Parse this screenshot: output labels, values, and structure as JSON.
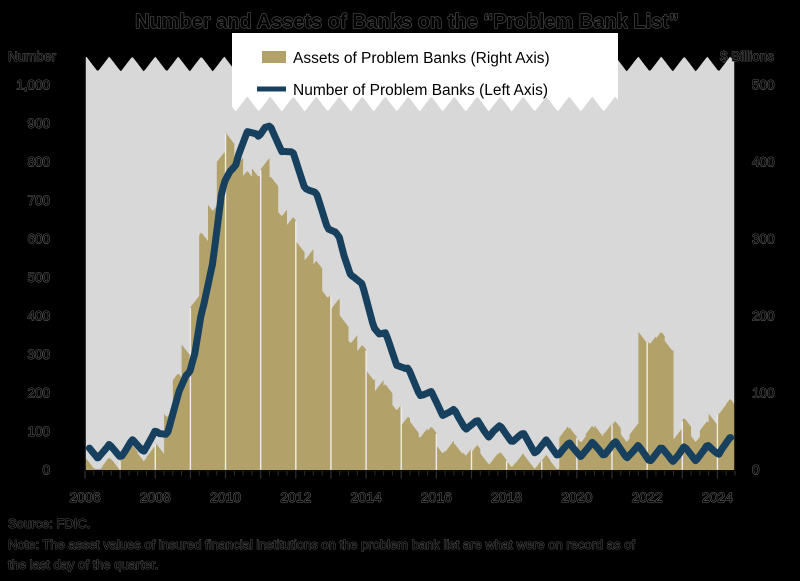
{
  "title": "Number and Assets of Banks on the “Problem Bank List”",
  "left_axis": {
    "label": "Number",
    "ticks": [
      "1,000",
      "900",
      "800",
      "700",
      "600",
      "500",
      "400",
      "300",
      "200",
      "100",
      "0"
    ],
    "min": 0,
    "max": 1000,
    "step": 100
  },
  "right_axis": {
    "label": "$ Billions",
    "ticks": [
      "500",
      "400",
      "300",
      "200",
      "100",
      "0"
    ],
    "min": 0,
    "max": 500,
    "step": 100
  },
  "x_axis": {
    "year_labels": [
      "2006",
      "2008",
      "2010",
      "2012",
      "2014",
      "2016",
      "2018",
      "2020",
      "2022",
      "2024"
    ],
    "start_year": 2006,
    "quarters": 74
  },
  "legend": [
    {
      "label": "Assets of Problem Banks (Right Axis)",
      "swatch": "bar-swatch",
      "color": "#b2a169"
    },
    {
      "label": "Number of Problem Banks (Left Axis)",
      "swatch": "line-swatch",
      "color": "#16405e"
    }
  ],
  "source": "Source: FDIC.",
  "note": {
    "line1": "Note: The asset values of insured financial institutions on the problem bank list are what were on record as of",
    "line2": "the last day of the quarter."
  },
  "colors": {
    "background": "#000000",
    "plot_background": "#d8d8d8",
    "bar": "#b2a169",
    "line": "#16405e",
    "legend_box": "#ffffff",
    "year_separator": "#ececec",
    "axis": "#0a0a0a",
    "tick_mark": "#2d2d2d"
  },
  "chart_data": {
    "type": "bar+line",
    "x_start": "2006 Q1",
    "x_end": "2024 Q2",
    "x_frequency": "quarterly",
    "title": "Number and Assets of Banks on the “Problem Bank List”",
    "left_ylim": [
      0,
      1000
    ],
    "right_ylim": [
      0,
      500
    ],
    "legend_position": "top-center",
    "grid": "vertical white separators at year boundaries",
    "series": [
      {
        "name": "Assets of Problem Banks (Right Axis)",
        "type": "bar",
        "axis": "right",
        "unit": "$ Billions",
        "values": [
          5,
          6,
          7,
          8,
          21,
          23,
          21,
          22,
          26,
          78,
          116,
          159,
          220,
          299,
          346,
          403,
          431,
          403,
          379,
          390,
          397,
          372,
          339,
          319,
          292,
          282,
          262,
          233,
          213,
          192,
          174,
          153,
          126,
          110,
          102,
          87,
          60,
          56,
          51,
          47,
          31,
          29,
          25,
          28,
          23,
          17,
          16,
          14,
          13,
          12,
          11,
          11,
          10,
          9,
          49,
          46,
          45,
          48,
          52,
          56,
          54,
          46,
          51,
          170,
          173,
          170,
          164,
          48,
          58,
          46,
          54,
          66,
          82,
          83
        ]
      },
      {
        "name": "Number of Problem Banks (Left Axis)",
        "type": "line",
        "axis": "left",
        "unit": "banks",
        "values": [
          48,
          50,
          47,
          50,
          53,
          61,
          65,
          76,
          90,
          117,
          171,
          252,
          305,
          416,
          552,
          702,
          775,
          829,
          860,
          884,
          888,
          865,
          844,
          813,
          772,
          732,
          694,
          651,
          612,
          553,
          515,
          467,
          411,
          354,
          329,
          291,
          253,
          228,
          203,
          183,
          165,
          147,
          132,
          123,
          112,
          105,
          104,
          95,
          92,
          82,
          71,
          60,
          59,
          56,
          55,
          51,
          54,
          52,
          56,
          56,
          55,
          51,
          46,
          44,
          40,
          40,
          42,
          39,
          43,
          43,
          44,
          52,
          63,
          66
        ]
      }
    ]
  }
}
